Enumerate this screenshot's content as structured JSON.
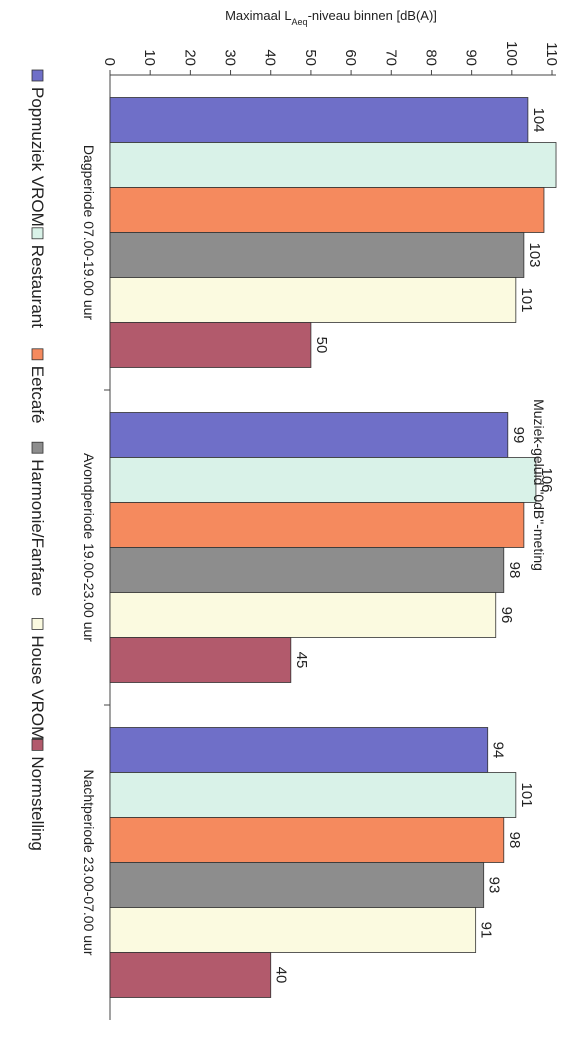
{
  "chart_data": {
    "type": "bar",
    "title": "Muziek-geluid \"0dB\"-meting",
    "ylabel": "Maximaal L",
    "ylabel_sub": "Aeq",
    "ylabel_rest": "-niveau binnen [dB(A)]",
    "ylim": [
      0,
      110
    ],
    "yticks": [
      "0",
      "10",
      "20",
      "30",
      "40",
      "50",
      "60",
      "70",
      "80",
      "90",
      "100",
      "110"
    ],
    "categories": [
      "Dagperiode 07.00-19.00 uur",
      "Avondperiode 19.00-23.00 uur",
      "Nachtperiode 23.00-07.00 uur"
    ],
    "series": [
      {
        "name": "Popmuziek VROM",
        "color": "#6f6fc8",
        "values": [
          104,
          99,
          94
        ],
        "labels": [
          "104",
          "99",
          "94"
        ]
      },
      {
        "name": "Restaurant",
        "color": "#d9f2e8",
        "values": [
          111,
          106,
          101
        ],
        "labels": [
          "",
          "106",
          "101"
        ]
      },
      {
        "name": "Eetcafé",
        "color": "#f58a5e",
        "values": [
          108,
          103,
          98
        ],
        "labels": [
          "",
          "",
          "98"
        ]
      },
      {
        "name": "Harmonie/Fanfare",
        "color": "#8d8d8d",
        "values": [
          103,
          98,
          93
        ],
        "labels": [
          "103",
          "98",
          "93"
        ]
      },
      {
        "name": "House VROM",
        "color": "#fbfae0",
        "values": [
          101,
          96,
          91
        ],
        "labels": [
          "101",
          "96",
          "91"
        ]
      },
      {
        "name": "Normstelling",
        "color": "#b25a6c",
        "values": [
          50,
          45,
          40
        ],
        "labels": [
          "50",
          "45",
          "40"
        ]
      }
    ],
    "legend_position": "bottom",
    "grid": false
  }
}
